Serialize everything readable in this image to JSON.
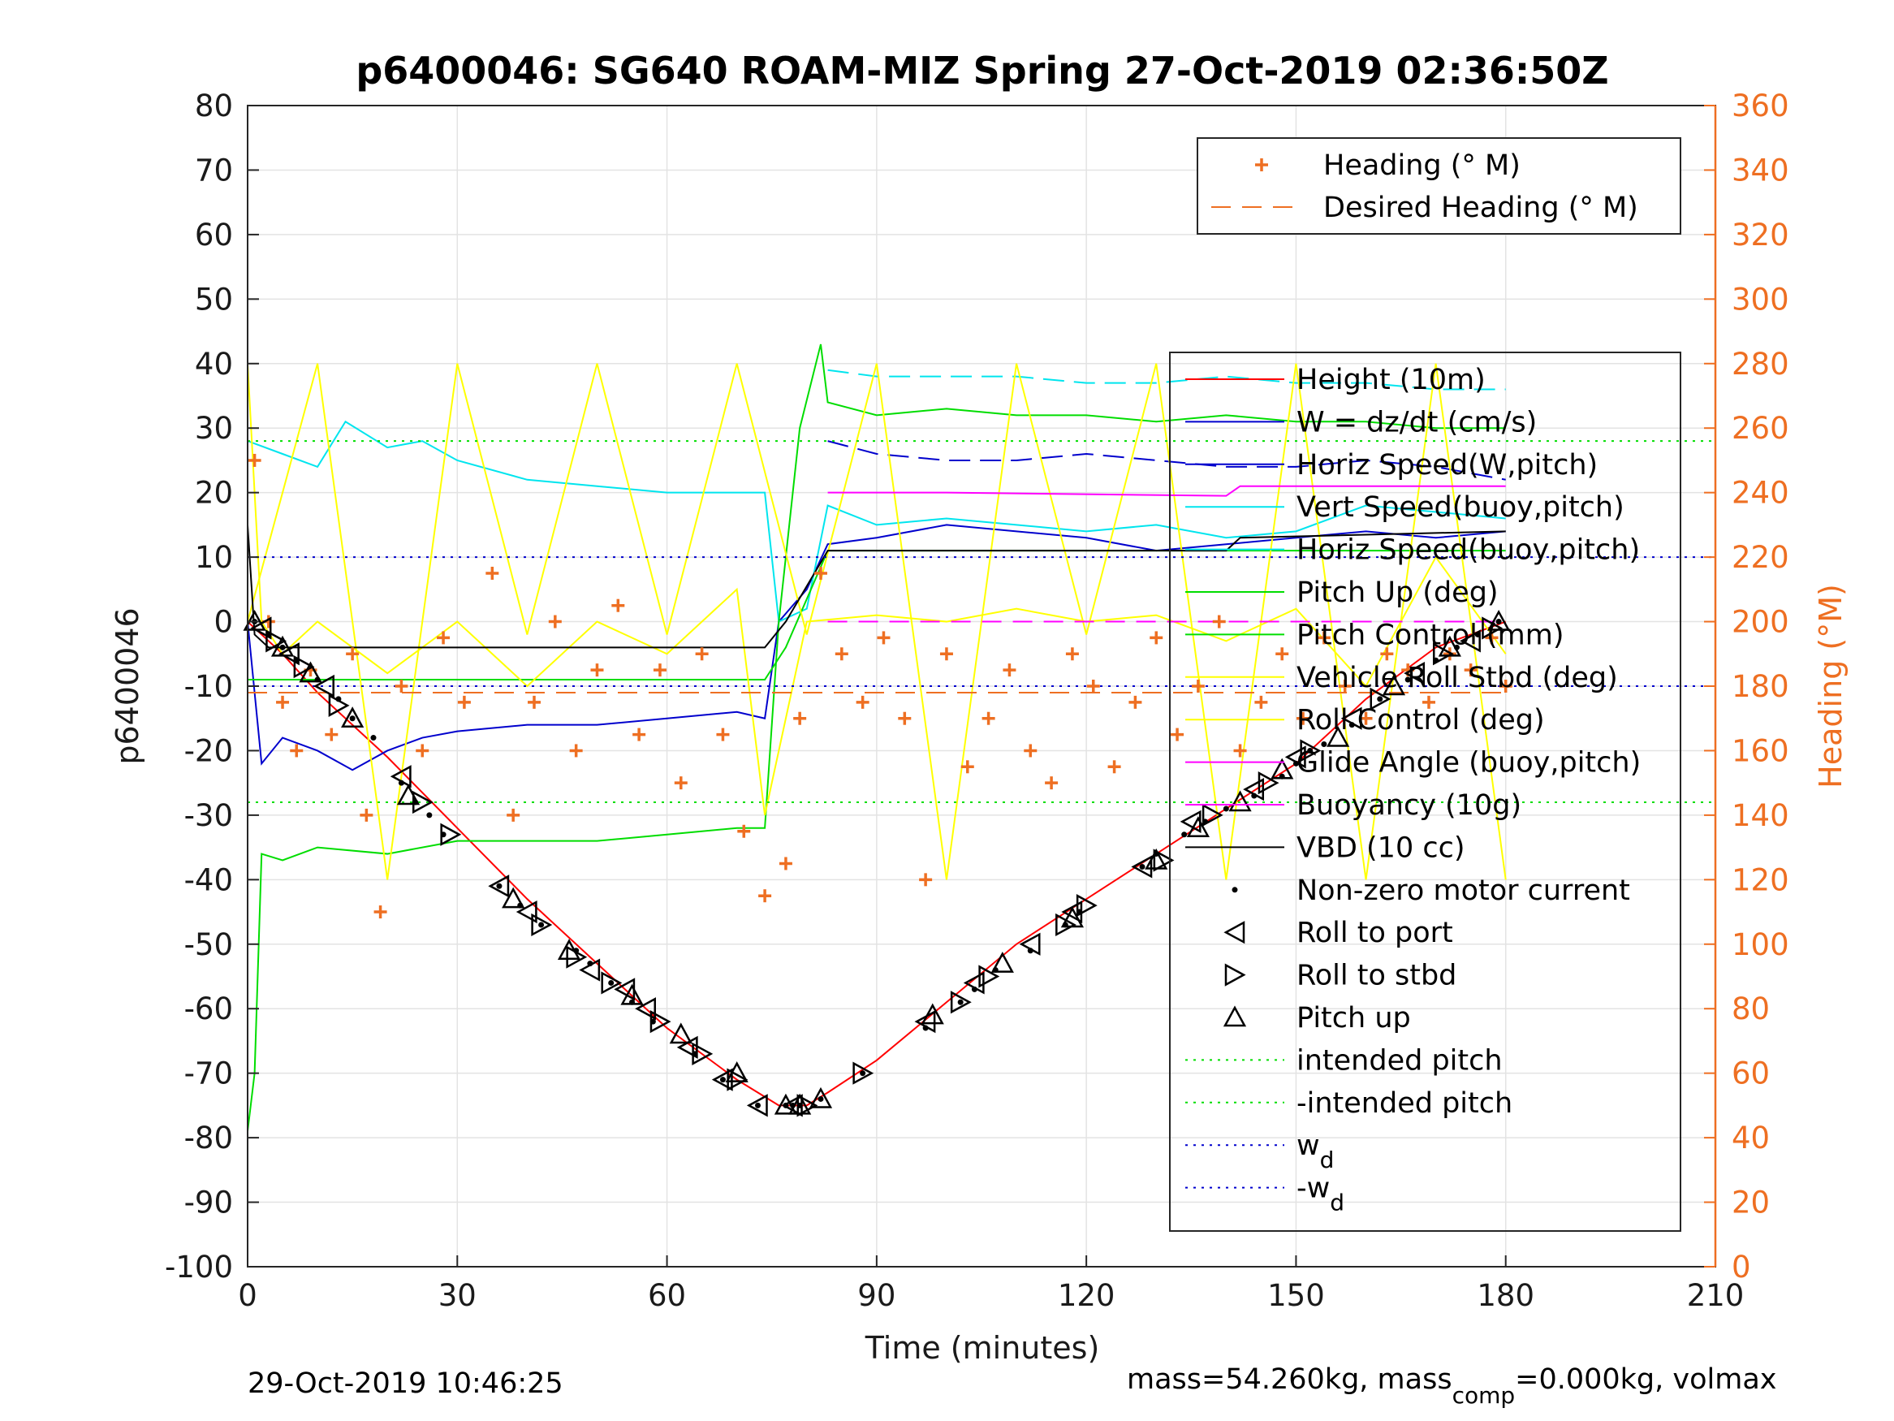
{
  "chart_data": {
    "type": "line",
    "title": "p6400046: SG640 ROAM-MIZ Spring 27-Oct-2019 02:36:50Z",
    "xlabel": "Time (minutes)",
    "ylabel": "p6400046",
    "ylabel_right": "Heading (°M)",
    "xlim": [
      0,
      210
    ],
    "ylim": [
      -100,
      80
    ],
    "ylim_right": [
      0,
      360
    ],
    "xticks": [
      "0",
      "30",
      "60",
      "90",
      "120",
      "150",
      "180",
      "210"
    ],
    "yticks": [
      "80",
      "70",
      "60",
      "50",
      "40",
      "30",
      "20",
      "10",
      "0",
      "-10",
      "-20",
      "-30",
      "-40",
      "-50",
      "-60",
      "-70",
      "-80",
      "-90",
      "-100"
    ],
    "yticks_right": [
      "360",
      "340",
      "320",
      "300",
      "280",
      "260",
      "240",
      "220",
      "200",
      "180",
      "160",
      "140",
      "120",
      "100",
      "80",
      "60",
      "40",
      "20",
      "0"
    ],
    "grid": true,
    "legend_right_axis": {
      "placement": "top-right",
      "entries": [
        "Heading (° M)",
        "Desired Heading (° M)"
      ]
    },
    "legend_left_axis": {
      "placement": "right",
      "entries": [
        "Height (10m)",
        "W = dz/dt (cm/s)",
        "Horiz Speed(W,pitch)",
        "Vert Speed(buoy,pitch)",
        "Horiz Speed(buoy,pitch)",
        "Pitch Up (deg)",
        "Pitch Control (mm)",
        "Vehicle Roll Stbd (deg)",
        "Roll Control (deg)",
        "Glide Angle (buoy,pitch)",
        "Buoyancy (10g)",
        "VBD (10 cc)",
        "Non-zero motor current",
        "Roll to port",
        "Roll to stbd",
        "Pitch up",
        "intended pitch",
        "-intended pitch",
        "w",
        "-w"
      ],
      "subscript": "d"
    },
    "series": [
      {
        "name": "Height (10m)",
        "color": "#ff0000",
        "x": [
          0,
          5,
          10,
          20,
          30,
          40,
          50,
          60,
          70,
          76,
          80,
          83,
          90,
          100,
          110,
          120,
          130,
          140,
          150,
          160,
          170,
          180
        ],
        "y": [
          0,
          -5,
          -11,
          -21,
          -32,
          -43,
          -53,
          -63,
          -71,
          -75,
          -75,
          -73,
          -68,
          -59,
          -50,
          -43,
          -36,
          -29,
          -22,
          -12,
          -4,
          0
        ]
      },
      {
        "name": "W = dz/dt (cm/s)",
        "color": "#0000cd",
        "x": [
          0,
          2,
          5,
          10,
          15,
          20,
          25,
          30,
          40,
          50,
          60,
          70,
          74,
          76,
          80,
          83,
          90,
          100,
          110,
          120,
          130,
          140,
          150,
          160,
          170,
          180
        ],
        "y": [
          0,
          -22,
          -18,
          -20,
          -23,
          -20,
          -18,
          -17,
          -16,
          -16,
          -15,
          -14,
          -15,
          0,
          5,
          12,
          13,
          15,
          14,
          13,
          11,
          12,
          13,
          14,
          13,
          14
        ]
      },
      {
        "name": "Horiz Speed(W,pitch)",
        "color": "#0000cd",
        "x": [
          83,
          90,
          100,
          110,
          120,
          130,
          140,
          150,
          160,
          170,
          180
        ],
        "y": [
          28,
          26,
          25,
          25,
          26,
          25,
          24,
          24,
          25,
          24,
          22
        ]
      },
      {
        "name": "Vert Speed(buoy,pitch)",
        "color": "#00e5ee",
        "x": [
          0,
          5,
          10,
          14,
          20,
          25,
          30,
          40,
          50,
          60,
          70,
          74,
          76,
          80,
          83,
          90,
          100,
          110,
          120,
          130,
          140,
          150,
          160,
          170,
          180
        ],
        "y": [
          28,
          26,
          24,
          31,
          27,
          28,
          25,
          22,
          21,
          20,
          20,
          20,
          0,
          2,
          18,
          15,
          16,
          15,
          14,
          15,
          13,
          14,
          18,
          17,
          16
        ]
      },
      {
        "name": "Horiz Speed(buoy,pitch)",
        "color": "#00e5ee",
        "x": [
          83,
          90,
          100,
          110,
          120,
          130,
          140,
          150,
          160,
          170,
          180
        ],
        "y": [
          39,
          38,
          38,
          38,
          37,
          37,
          38,
          37,
          37,
          36,
          36
        ]
      },
      {
        "name": "Pitch Up (deg)",
        "color": "#00dd00",
        "x": [
          0,
          1,
          2,
          5,
          10,
          20,
          30,
          40,
          50,
          60,
          70,
          74,
          76,
          79,
          82,
          83,
          90,
          100,
          110,
          120,
          130,
          140,
          150,
          160,
          170,
          180
        ],
        "y": [
          -79,
          -70,
          -36,
          -37,
          -35,
          -36,
          -34,
          -34,
          -34,
          -33,
          -32,
          -32,
          0,
          30,
          43,
          34,
          32,
          33,
          32,
          32,
          31,
          32,
          31,
          31,
          30,
          30
        ]
      },
      {
        "name": "Pitch Control (mm)",
        "color": "#00dd00",
        "x": [
          0,
          5,
          74,
          77,
          83,
          90,
          120,
          150,
          180
        ],
        "y": [
          -9,
          -9,
          -9,
          -4,
          11,
          11,
          11,
          11,
          11
        ]
      },
      {
        "name": "Vehicle Roll Stbd (deg)",
        "color": "#ffff00",
        "x": [
          0,
          2,
          5,
          10,
          20,
          30,
          40,
          50,
          60,
          70,
          74,
          80,
          90,
          100,
          110,
          120,
          130,
          140,
          150,
          160,
          170,
          180
        ],
        "y": [
          40,
          0,
          -5,
          0,
          -8,
          0,
          -10,
          0,
          -5,
          5,
          -30,
          0,
          1,
          0,
          2,
          0,
          1,
          -3,
          2,
          -10,
          10,
          -5
        ]
      },
      {
        "name": "Roll Control (deg)",
        "color": "#ffff00",
        "x": [
          0,
          10,
          20,
          30,
          40,
          50,
          60,
          70,
          80,
          90,
          100,
          110,
          120,
          130,
          140,
          150,
          160,
          170,
          180
        ],
        "y": [
          0,
          40,
          -40,
          40,
          -2,
          40,
          -2,
          40,
          -2,
          40,
          -40,
          40,
          -2,
          40,
          -40,
          40,
          -40,
          40,
          -40
        ]
      },
      {
        "name": "Glide Angle (buoy,pitch)",
        "color": "#ff00ff",
        "x": [
          83,
          100,
          140,
          142,
          180
        ],
        "y": [
          20,
          20,
          19.5,
          21,
          21
        ]
      },
      {
        "name": "Buoyancy (10g)",
        "color": "#ff00ff",
        "x": [
          83,
          180
        ],
        "y": [
          0,
          0
        ]
      },
      {
        "name": "VBD (10 cc)",
        "color": "#000000",
        "x": [
          0,
          1,
          3,
          74,
          77,
          83,
          140,
          142,
          180
        ],
        "y": [
          15,
          -2,
          -4,
          -4,
          0,
          11,
          11,
          13,
          14
        ]
      },
      {
        "name": "intended pitch",
        "color": "#00dd00",
        "x": [
          0,
          210
        ],
        "y": [
          28,
          28
        ]
      },
      {
        "name": "-intended pitch",
        "color": "#00dd00",
        "x": [
          0,
          210
        ],
        "y": [
          -28,
          -28
        ]
      },
      {
        "name": "w_d",
        "color": "#0000cd",
        "x": [
          0,
          210
        ],
        "y": [
          10,
          10
        ]
      },
      {
        "name": "-w_d",
        "color": "#0000cd",
        "x": [
          0,
          210
        ],
        "y": [
          -10,
          -10
        ]
      },
      {
        "name": "Desired Heading (° M)",
        "axis": "right",
        "color": "#ee6f22",
        "x": [
          0,
          180
        ],
        "y": [
          178,
          178
        ]
      },
      {
        "name": "Heading (° M)",
        "axis": "right",
        "color": "#ee6f22",
        "x": [
          1,
          3,
          5,
          7,
          9,
          12,
          15,
          17,
          19,
          22,
          25,
          28,
          31,
          35,
          38,
          41,
          44,
          47,
          50,
          53,
          56,
          59,
          62,
          65,
          68,
          71,
          74,
          77,
          79,
          82,
          85,
          88,
          91,
          94,
          97,
          100,
          103,
          106,
          109,
          112,
          115,
          118,
          121,
          124,
          127,
          130,
          133,
          136,
          139,
          142,
          145,
          148,
          151,
          154,
          157,
          160,
          163,
          166,
          169,
          172,
          175,
          178,
          180
        ],
        "y": [
          250,
          200,
          175,
          160,
          185,
          165,
          190,
          140,
          110,
          180,
          160,
          195,
          175,
          215,
          140,
          175,
          200,
          160,
          185,
          205,
          165,
          185,
          150,
          190,
          165,
          135,
          115,
          125,
          170,
          215,
          190,
          175,
          195,
          170,
          120,
          190,
          155,
          170,
          185,
          160,
          150,
          190,
          180,
          155,
          175,
          195,
          165,
          180,
          200,
          160,
          175,
          190,
          170,
          195,
          180,
          170,
          190,
          185,
          175,
          190,
          185,
          195,
          180
        ]
      },
      {
        "name": "Non-zero motor current",
        "color": "#000000",
        "x": [
          1,
          3,
          5,
          7,
          10,
          13,
          15,
          18,
          22,
          24,
          26,
          28,
          36,
          39,
          42,
          47,
          49,
          52,
          55,
          58,
          64,
          68,
          73,
          77,
          78,
          79,
          82,
          88,
          97,
          102,
          104,
          107,
          112,
          117,
          119,
          128,
          130,
          134,
          137,
          140,
          144,
          148,
          150,
          152,
          154,
          158,
          162,
          166,
          170,
          173,
          176,
          179
        ],
        "y": [
          0,
          -2,
          -4,
          -6,
          -9,
          -12,
          -15,
          -18,
          -25,
          -28,
          -30,
          -33,
          -41,
          -44,
          -47,
          -51,
          -53,
          -56,
          -59,
          -62,
          -67,
          -71,
          -75,
          -75,
          -75,
          -75,
          -74,
          -70,
          -63,
          -59,
          -57,
          -54,
          -51,
          -47,
          -45,
          -38,
          -36,
          -33,
          -31,
          -29,
          -27,
          -24,
          -22,
          -20,
          -19,
          -16,
          -12,
          -9,
          -6,
          -4,
          -2,
          0
        ]
      },
      {
        "name": "Roll to port",
        "color": "#000000",
        "x": [
          2,
          6,
          11,
          22,
          36,
          40,
          49,
          54,
          57,
          63,
          68,
          73,
          78,
          97,
          104,
          112,
          118,
          128,
          135,
          144,
          150,
          158,
          167,
          175
        ],
        "y": [
          -1,
          -5,
          -10,
          -24,
          -41,
          -45,
          -54,
          -57,
          -60,
          -66,
          -71,
          -75,
          -75,
          -62,
          -56,
          -50,
          -45,
          -38,
          -31,
          -26,
          -21,
          -15,
          -8,
          -3
        ]
      },
      {
        "name": "Roll to stbd",
        "color": "#000000",
        "x": [
          4,
          8,
          13,
          25,
          29,
          42,
          47,
          52,
          59,
          65,
          70,
          80,
          88,
          102,
          106,
          117,
          120,
          131,
          138,
          146,
          152,
          162,
          171,
          178
        ],
        "y": [
          -3,
          -7,
          -13,
          -28,
          -33,
          -47,
          -52,
          -56,
          -62,
          -67,
          -71,
          -75,
          -70,
          -59,
          -55,
          -47,
          -44,
          -37,
          -30,
          -25,
          -20,
          -12,
          -5,
          -1
        ]
      },
      {
        "name": "Pitch up",
        "color": "#000000",
        "x": [
          1,
          5,
          9,
          15,
          23,
          38,
          46,
          55,
          62,
          70,
          77,
          79,
          82,
          98,
          108,
          118,
          130,
          136,
          142,
          148,
          156,
          164,
          172,
          179
        ],
        "y": [
          0,
          -4,
          -8,
          -15,
          -27,
          -43,
          -51,
          -58,
          -64,
          -70,
          -75,
          -75,
          -74,
          -61,
          -53,
          -46,
          -37,
          -32,
          -28,
          -23,
          -18,
          -10,
          -4,
          0
        ]
      }
    ]
  },
  "footer": {
    "date": "29-Oct-2019 10:46:25",
    "mass": "mass=54.260kg, mass",
    "mass_sub": "comp",
    "mass_rest": "=0.000kg, volmax"
  }
}
